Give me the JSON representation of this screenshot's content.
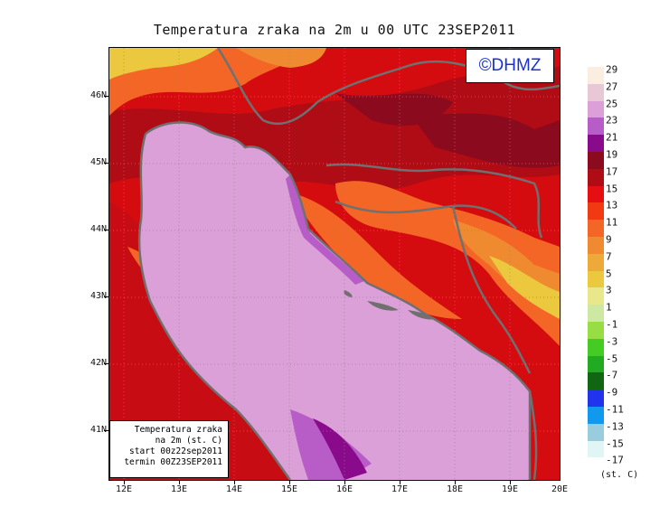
{
  "title": "Temperatura zraka na 2m u 00 UTC 23SEP2011",
  "logo_text": "©DHMZ",
  "info": {
    "line1": "Temperatura zraka",
    "line2": "na 2m (st. C)",
    "line3": "start 00z22sep2011",
    "line4": "termin 00Z23SEP2011"
  },
  "lat_labels": [
    "46N",
    "45N",
    "44N",
    "43N",
    "42N",
    "41N"
  ],
  "lon_labels": [
    "12E",
    "13E",
    "14E",
    "15E",
    "16E",
    "17E",
    "18E",
    "19E",
    "20E"
  ],
  "legend": {
    "labels": [
      "29",
      "27",
      "25",
      "23",
      "21",
      "19",
      "17",
      "15",
      "13",
      "11",
      "9",
      "7",
      "5",
      "3",
      "1",
      "-1",
      "-3",
      "-5",
      "-7",
      "-9",
      "-11",
      "-13",
      "-15",
      "-17"
    ],
    "colors": [
      "#fbeee0",
      "#e8c8d6",
      "#dca0d8",
      "#b85cc8",
      "#8a0a8c",
      "#8c0a1e",
      "#b00c16",
      "#e60e10",
      "#f23a12",
      "#f46626",
      "#f08a30",
      "#eeaa38",
      "#ecc83e",
      "#e8e88a",
      "#cce8a2",
      "#99dd44",
      "#44cc22",
      "#22aa22",
      "#116611",
      "#2233ee",
      "#1199ee",
      "#99ccdd",
      "#dff6f4"
    ],
    "units": "(st. C)"
  },
  "colors": {
    "sea": "#dca0d8",
    "land_hot": "#cc0000",
    "coast": "#707070"
  }
}
